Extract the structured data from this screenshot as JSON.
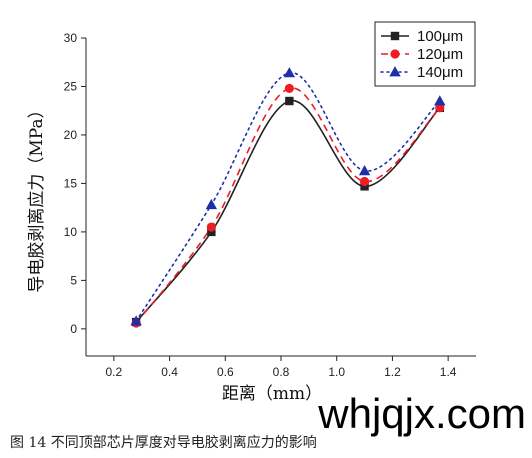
{
  "chart_data": {
    "type": "line",
    "x": [
      0.28,
      0.55,
      0.83,
      1.1,
      1.37
    ],
    "series": [
      {
        "name": "100μm",
        "values": [
          0.7,
          10.0,
          23.5,
          14.7,
          22.8
        ],
        "color": "#222222",
        "marker": "square",
        "line": "solid"
      },
      {
        "name": "120μm",
        "values": [
          0.6,
          10.5,
          24.8,
          15.2,
          22.8
        ],
        "color": "#ee1c25",
        "marker": "circle",
        "line": "dashed"
      },
      {
        "name": "140μm",
        "values": [
          0.8,
          12.8,
          26.4,
          16.3,
          23.5
        ],
        "color": "#1f2fa8",
        "marker": "triangle",
        "line": "dotted"
      }
    ],
    "xticks": [
      0.2,
      0.4,
      0.6,
      0.8,
      1.0,
      1.2,
      1.4
    ],
    "xtick_labels": [
      "0.2",
      "0.4",
      "0.6",
      "0.8",
      "1.0",
      "1.2",
      "1.4"
    ],
    "yticks": [
      0,
      5,
      10,
      15,
      20,
      25,
      30
    ],
    "ytick_labels": [
      "0",
      "5",
      "10",
      "15",
      "20",
      "25",
      "30"
    ],
    "xlim": [
      0.1,
      1.5
    ],
    "ylim": [
      -2.8,
      30
    ],
    "xlabel": "距离（mm）",
    "ylabel": "导电胶剥离应力（MPa）",
    "legend_position": "top-right",
    "grid": false
  },
  "caption": "图 14    不同顶部芯片厚度对导电胶剥离应力的影响",
  "watermark": "whjqjx.com"
}
